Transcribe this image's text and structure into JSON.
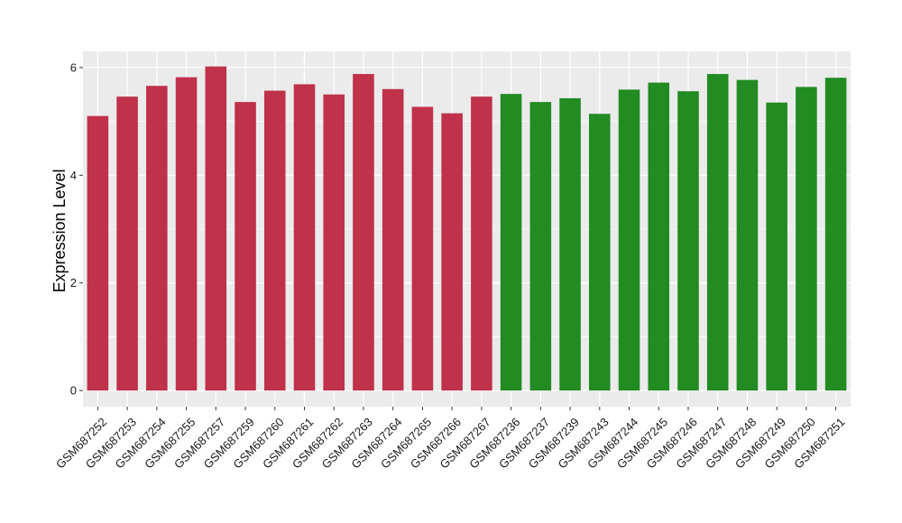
{
  "chart_data": {
    "type": "bar",
    "title": "",
    "xlabel": "",
    "ylabel": "Expression Level",
    "ylim": [
      -0.3,
      6.3
    ],
    "yticks": [
      0,
      2,
      4,
      6
    ],
    "grid": true,
    "legend": "none",
    "categories": [
      "GSM687252",
      "GSM687253",
      "GSM687254",
      "GSM687255",
      "GSM687257",
      "GSM687259",
      "GSM687260",
      "GSM687261",
      "GSM687262",
      "GSM687263",
      "GSM687264",
      "GSM687265",
      "GSM687266",
      "GSM687267",
      "GSM687236",
      "GSM687237",
      "GSM687239",
      "GSM687243",
      "GSM687244",
      "GSM687245",
      "GSM687246",
      "GSM687247",
      "GSM687248",
      "GSM687249",
      "GSM687250",
      "GSM687251"
    ],
    "values": [
      5.1,
      5.46,
      5.66,
      5.82,
      6.02,
      5.36,
      5.57,
      5.69,
      5.5,
      5.88,
      5.6,
      5.27,
      5.15,
      5.46,
      5.51,
      5.36,
      5.43,
      5.14,
      5.59,
      5.72,
      5.56,
      5.88,
      5.77,
      5.35,
      5.64,
      5.81
    ],
    "groups": [
      "red",
      "red",
      "red",
      "red",
      "red",
      "red",
      "red",
      "red",
      "red",
      "red",
      "red",
      "red",
      "red",
      "red",
      "green",
      "green",
      "green",
      "green",
      "green",
      "green",
      "green",
      "green",
      "green",
      "green",
      "green",
      "green"
    ],
    "colors": {
      "red": "#c0314a",
      "green": "#228b22"
    },
    "panel_background": "#ebebeb",
    "gridline_color": "#ffffff"
  }
}
